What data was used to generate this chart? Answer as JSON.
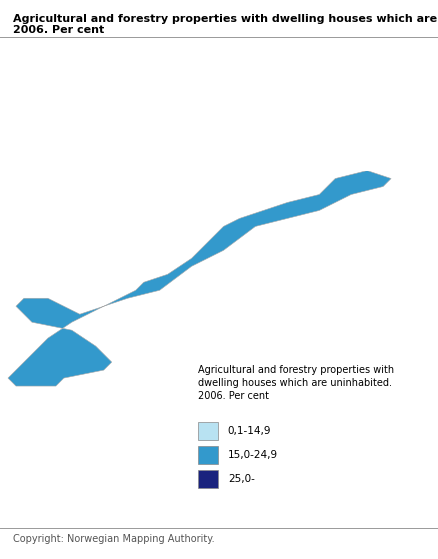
{
  "title_line1": "Agricultural and forestry properties with dwelling houses which are uninhabited.",
  "title_line2": "2006. Per cent",
  "title_fontsize": 8.0,
  "title_fontweight": "bold",
  "copyright": "Copyright: Norwegian Mapping Authority.",
  "copyright_fontsize": 7.0,
  "legend_title": "Agricultural and forestry properties with\ndwelling houses which are uninhabited.\n2006. Per cent",
  "legend_title_fontsize": 7.0,
  "legend_labels": [
    "0,1-14,9",
    "15,0-24,9",
    "25,0-"
  ],
  "legend_colors": [
    "#b8e2f2",
    "#3399cc",
    "#1a237e"
  ],
  "legend_fontsize": 7.5,
  "background_color": "#ffffff",
  "map_background": "#ffffff",
  "norway_xlim": [
    4.0,
    31.5
  ],
  "norway_ylim": [
    57.5,
    71.5
  ],
  "separator_color": "#999999",
  "edge_color": "#cccccc",
  "edge_linewidth": 0.3
}
